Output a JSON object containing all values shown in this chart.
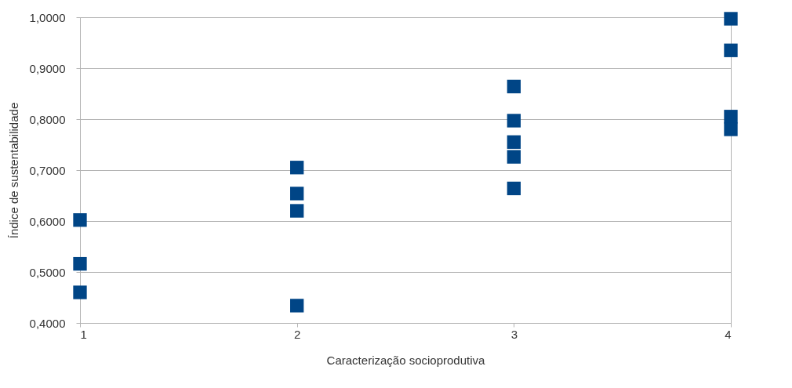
{
  "chart_data": {
    "type": "scatter",
    "xlabel": "Caracterização socioprodutiva",
    "ylabel": "Índice de sustentabilidade",
    "x": [
      1,
      1,
      1,
      2,
      2,
      2,
      2,
      3,
      3,
      3,
      3,
      3,
      4,
      4,
      4,
      4
    ],
    "series": [
      {
        "color": "#004586",
        "values": [
          0.602,
          0.516,
          0.46,
          0.705,
          0.654,
          0.62,
          0.434,
          0.864,
          0.797,
          0.755,
          0.726,
          0.664,
          0.997,
          0.935,
          0.805,
          0.78
        ]
      }
    ],
    "xlim": [
      1,
      4
    ],
    "xticks": [
      1,
      2,
      3,
      4
    ],
    "ylim": [
      0.4,
      1.0
    ],
    "yticks": [
      {
        "value": 0.4,
        "label": "0,4000"
      },
      {
        "value": 0.5,
        "label": "0,5000"
      },
      {
        "value": 0.6,
        "label": "0,6000"
      },
      {
        "value": 0.7,
        "label": "0,7000"
      },
      {
        "value": 0.8,
        "label": "0,8000"
      },
      {
        "value": 0.9,
        "label": "0,9000"
      },
      {
        "value": 1.0,
        "label": "1,0000"
      }
    ],
    "grid": "y",
    "marker": "square"
  }
}
